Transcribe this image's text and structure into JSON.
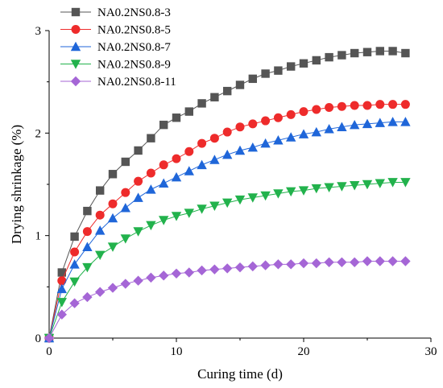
{
  "chart_data": {
    "type": "line",
    "xlabel": "Curing time (d)",
    "ylabel": "Drying shrinkage (%)",
    "xlim": [
      0,
      30
    ],
    "ylim": [
      0,
      3
    ],
    "xticks": [
      0,
      10,
      20,
      30
    ],
    "yticks": [
      0,
      1,
      2,
      3
    ],
    "legend_position": "top-left",
    "grid": false,
    "x": [
      0,
      1,
      2,
      3,
      4,
      5,
      6,
      7,
      8,
      9,
      10,
      11,
      12,
      13,
      14,
      15,
      16,
      17,
      18,
      19,
      20,
      21,
      22,
      23,
      24,
      25,
      26,
      27,
      28
    ],
    "series": [
      {
        "name": "NA0.2NS0.8-3",
        "color": "#555555",
        "marker": "square",
        "values": [
          0,
          0.64,
          0.99,
          1.24,
          1.44,
          1.6,
          1.72,
          1.83,
          1.95,
          2.08,
          2.15,
          2.21,
          2.29,
          2.35,
          2.41,
          2.47,
          2.53,
          2.58,
          2.61,
          2.65,
          2.68,
          2.71,
          2.74,
          2.76,
          2.78,
          2.79,
          2.8,
          2.8,
          2.78
        ]
      },
      {
        "name": "NA0.2NS0.8-5",
        "color": "#ee2b2b",
        "marker": "circle",
        "values": [
          0,
          0.56,
          0.84,
          1.04,
          1.2,
          1.31,
          1.42,
          1.53,
          1.61,
          1.69,
          1.75,
          1.82,
          1.9,
          1.95,
          2.01,
          2.06,
          2.09,
          2.12,
          2.15,
          2.18,
          2.21,
          2.23,
          2.25,
          2.26,
          2.27,
          2.27,
          2.28,
          2.28,
          2.28
        ]
      },
      {
        "name": "NA0.2NS0.8-7",
        "color": "#1f66d9",
        "marker": "triangle-up",
        "values": [
          0,
          0.48,
          0.72,
          0.89,
          1.05,
          1.17,
          1.27,
          1.37,
          1.45,
          1.51,
          1.57,
          1.63,
          1.69,
          1.74,
          1.79,
          1.83,
          1.86,
          1.9,
          1.93,
          1.96,
          1.99,
          2.01,
          2.04,
          2.06,
          2.08,
          2.09,
          2.1,
          2.11,
          2.11
        ]
      },
      {
        "name": "NA0.2NS0.8-9",
        "color": "#22b24c",
        "marker": "triangle-down",
        "values": [
          0,
          0.35,
          0.55,
          0.69,
          0.81,
          0.89,
          0.97,
          1.04,
          1.1,
          1.15,
          1.19,
          1.22,
          1.26,
          1.29,
          1.32,
          1.35,
          1.37,
          1.39,
          1.41,
          1.43,
          1.44,
          1.46,
          1.47,
          1.48,
          1.49,
          1.5,
          1.51,
          1.52,
          1.52
        ]
      },
      {
        "name": "NA0.2NS0.8-11",
        "color": "#a566d6",
        "marker": "diamond",
        "values": [
          0,
          0.23,
          0.34,
          0.4,
          0.45,
          0.49,
          0.53,
          0.56,
          0.59,
          0.61,
          0.63,
          0.64,
          0.66,
          0.67,
          0.68,
          0.69,
          0.7,
          0.71,
          0.72,
          0.72,
          0.73,
          0.73,
          0.74,
          0.74,
          0.74,
          0.75,
          0.75,
          0.75,
          0.75
        ]
      }
    ]
  }
}
